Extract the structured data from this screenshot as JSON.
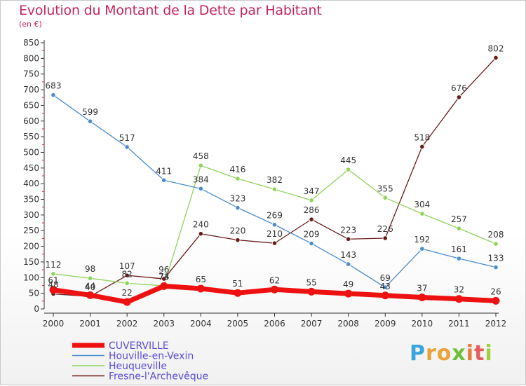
{
  "header": {
    "title": "Evolution du Montant de la Dette par Habitant",
    "subtitle": "(en €)"
  },
  "logo": {
    "letters": [
      "P",
      "r",
      "o",
      "x",
      "i",
      "t",
      "i"
    ],
    "colors": [
      "#3aa5d8",
      "#e8a33a",
      "#e8a33a",
      "#6fbf3a",
      "#e87a3a",
      "#e85a5a",
      "#9fcf3a"
    ]
  },
  "chart_data": {
    "type": "line",
    "title": "Evolution du Montant de la Dette par Habitant",
    "ylabel": "(en €)",
    "xlabel": "",
    "x": [
      "2000",
      "2001",
      "2002",
      "2003",
      "2004",
      "2005",
      "2006",
      "2007",
      "2008",
      "2009",
      "2010",
      "2011",
      "2012"
    ],
    "ylim": [
      0,
      850
    ],
    "yticks": [
      0,
      50,
      100,
      150,
      200,
      250,
      300,
      350,
      400,
      450,
      500,
      550,
      600,
      650,
      700,
      750,
      800,
      850
    ],
    "grid": false,
    "legend": "bottom-left",
    "series": [
      {
        "name": "Fresne-l'Archevêque",
        "color": "#6b1a1a",
        "values": [
          48,
          40,
          107,
          96,
          240,
          220,
          210,
          286,
          223,
          226,
          518,
          676,
          802
        ],
        "labels": [
          "48",
          "40",
          "107",
          "96",
          "240",
          "220",
          "210",
          "286",
          "223",
          "226",
          "518",
          "676",
          "802"
        ]
      },
      {
        "name": "Heuqueville",
        "color": "#8ed45a",
        "values": [
          112,
          98,
          82,
          74,
          458,
          416,
          382,
          347,
          445,
          355,
          304,
          257,
          208
        ],
        "labels": [
          "112",
          "98",
          "82",
          "74",
          "458",
          "416",
          "382",
          "347",
          "445",
          "355",
          "304",
          "257",
          "208"
        ]
      },
      {
        "name": "Houville-en-Vexin",
        "color": "#4a8ccc",
        "values": [
          683,
          599,
          517,
          411,
          384,
          323,
          269,
          209,
          143,
          69,
          192,
          161,
          133
        ],
        "labels": [
          "683",
          "599",
          "517",
          "411",
          "384",
          "323",
          "269",
          "209",
          "143",
          "69",
          "192",
          "161",
          "133"
        ]
      },
      {
        "name": "CUVERVILLE",
        "color": "#ee1111",
        "values": [
          61,
          44,
          22,
          73,
          65,
          51,
          62,
          55,
          49,
          43,
          37,
          32,
          26
        ],
        "labels": [
          "61",
          "44",
          "22",
          "73",
          "65",
          "51",
          "62",
          "55",
          "49",
          "43",
          "37",
          "32",
          "26"
        ]
      }
    ]
  }
}
